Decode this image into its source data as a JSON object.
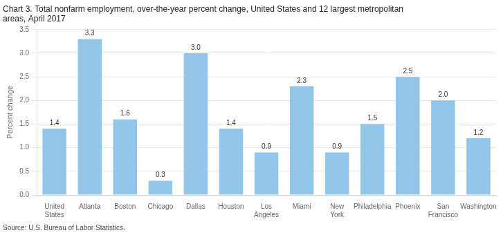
{
  "chart_data": {
    "type": "bar",
    "title": "Chart 3. Total nonfarm employment, over-the-year percent change, United States and 12 largest metropolitan\nareas, April 2017",
    "ylabel": "Percent change",
    "source": "Source: U.S. Bureau of Labor Statistics.",
    "categories": [
      "United\nStates",
      "Atlanta",
      "Boston",
      "Chicago",
      "Dallas",
      "Houston",
      "Los\nAngeles",
      "Miami",
      "New\nYork",
      "Philadelphia",
      "Phoenix",
      "San\nFrancisco",
      "Washington"
    ],
    "values": [
      1.4,
      3.3,
      1.6,
      0.3,
      3.0,
      1.4,
      0.9,
      2.3,
      0.9,
      1.5,
      2.5,
      2.0,
      1.2
    ],
    "value_labels": [
      "1.4",
      "3.3",
      "1.6",
      "0.3",
      "3.0",
      "1.4",
      "0.9",
      "2.3",
      "0.9",
      "1.5",
      "2.5",
      "2.0",
      "1.2"
    ],
    "data_labels": true,
    "color": "#92C5E8",
    "ylim": [
      0,
      3.5
    ],
    "yticks": [
      {
        "value": 0,
        "label": "0.0"
      },
      0.5,
      {
        "value": 1,
        "label": "1.0"
      },
      1.5,
      {
        "value": 2,
        "label": "2.0"
      },
      2.5,
      {
        "value": 3,
        "label": "3.0"
      },
      3.5
    ],
    "grid": true
  }
}
